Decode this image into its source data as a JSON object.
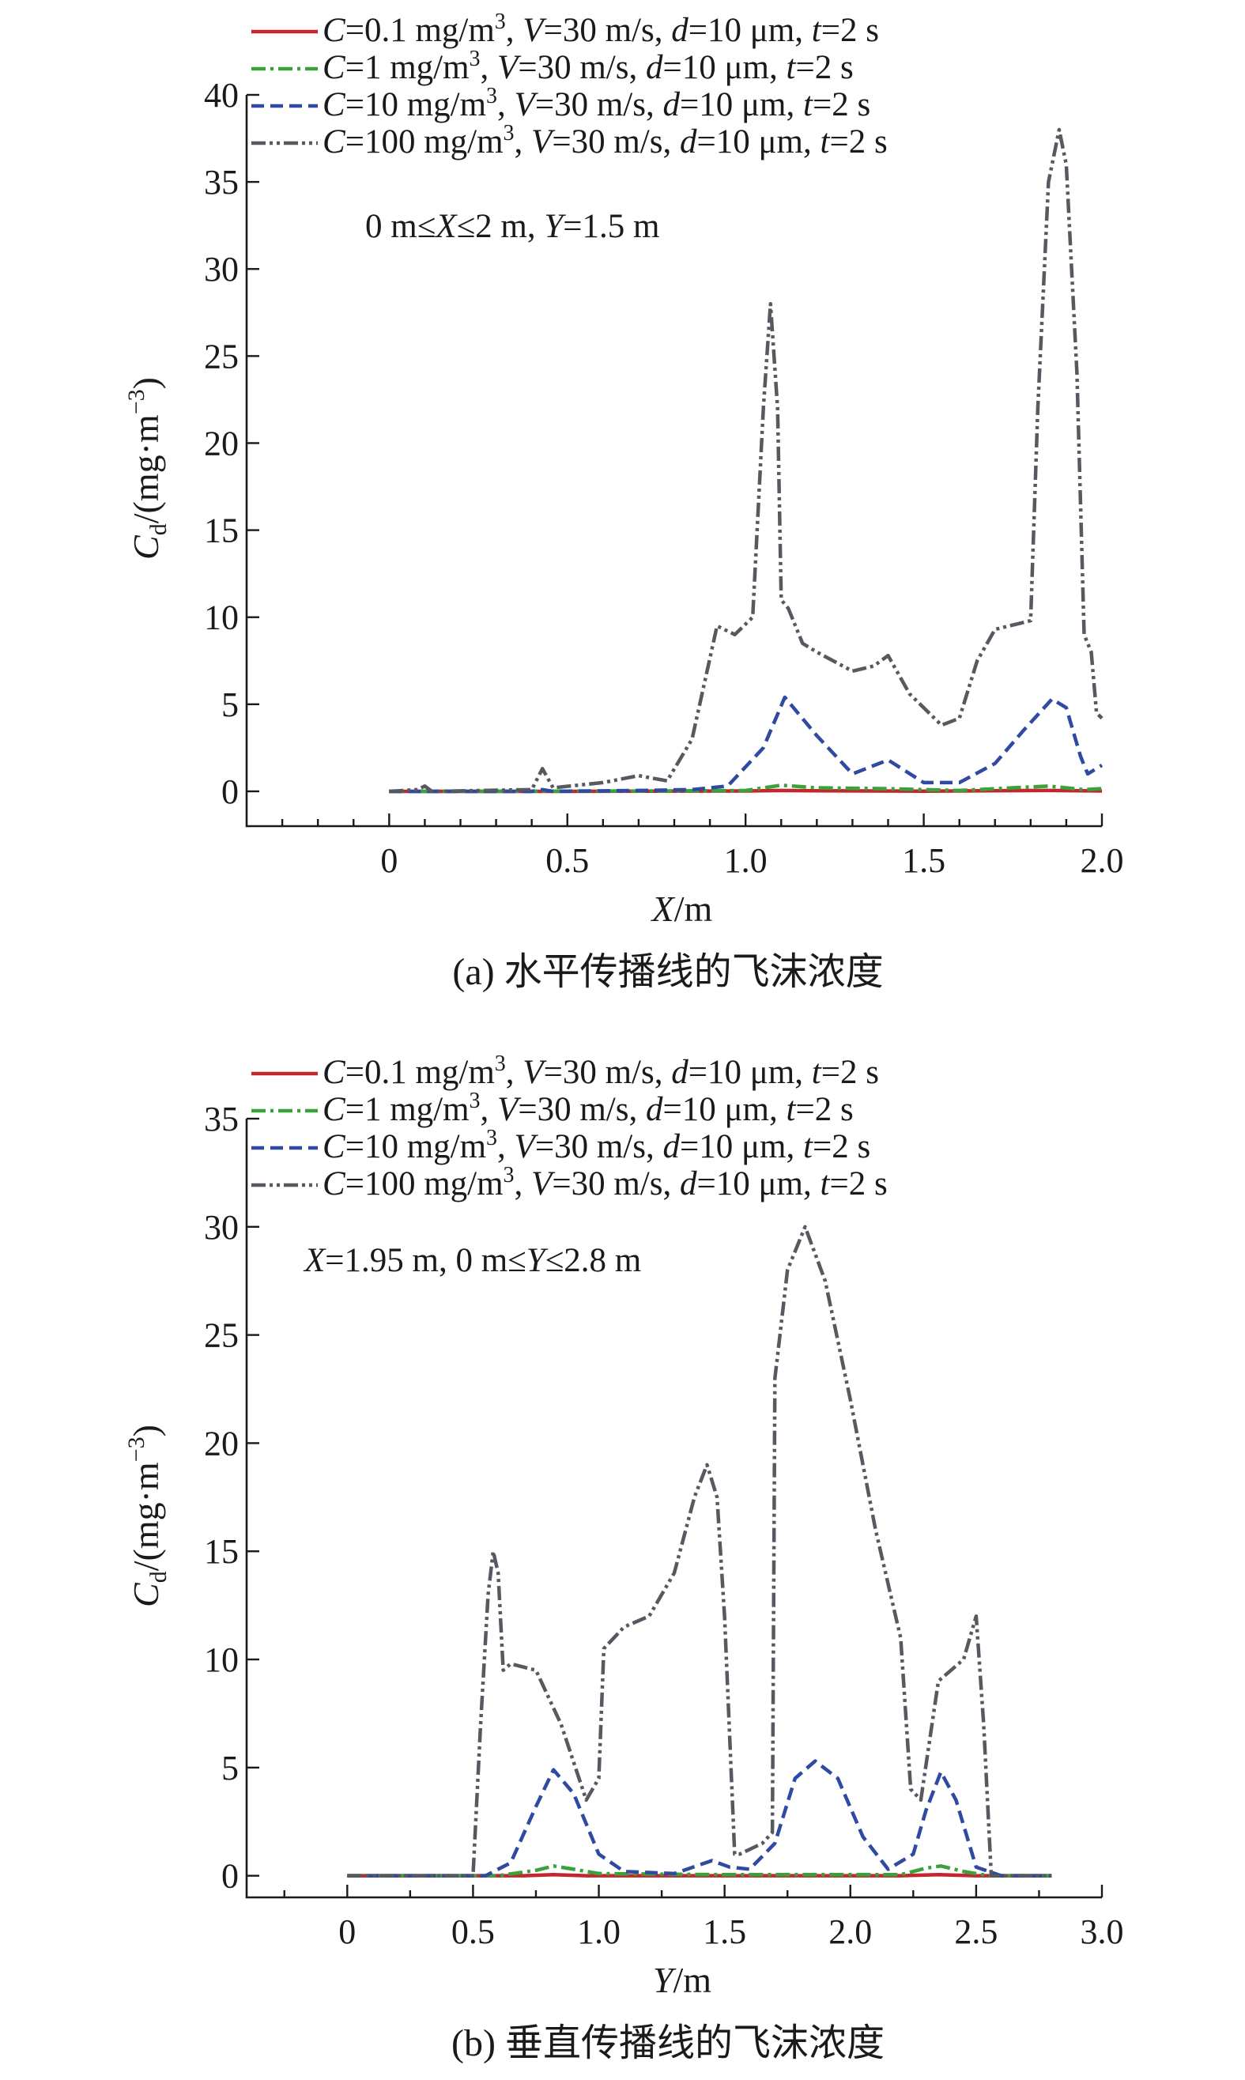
{
  "chart_data": [
    {
      "type": "line",
      "panel": "a",
      "caption": "(a) 水平传播线的飞沫浓度",
      "xlabel": {
        "var": "X",
        "unit": "/m"
      },
      "ylabel": {
        "var": "C",
        "sub": "d",
        "unit": "/(mg·m",
        "exp": "−3",
        "close": ")"
      },
      "xlim": [
        -0.4,
        2.0
      ],
      "ylim": [
        -2,
        40
      ],
      "xticks": [
        "0",
        "0.5",
        "1.0",
        "1.5",
        "2.0"
      ],
      "xtick_values": [
        0,
        0.5,
        1.0,
        1.5,
        2.0
      ],
      "xminor": [
        -0.3,
        -0.2,
        -0.1,
        0.1,
        0.2,
        0.3,
        0.4,
        0.6,
        0.7,
        0.8,
        0.9,
        1.1,
        1.2,
        1.3,
        1.4,
        1.6,
        1.7,
        1.8,
        1.9
      ],
      "yticks": [
        "0",
        "5",
        "10",
        "15",
        "20",
        "25",
        "30",
        "35",
        "40"
      ],
      "ytick_values": [
        0,
        5,
        10,
        15,
        20,
        25,
        30,
        35,
        40
      ],
      "legend": {
        "placement": "top-left",
        "entries": [
          {
            "C": "0.1",
            "unit": " mg/m",
            "exp": "3",
            "rest1": ", ",
            "V": "V",
            "rest2": "=30 m/s, ",
            "d": "d",
            "rest3": "=10 μm, ",
            "t": "t",
            "rest4": "=2 s"
          },
          {
            "C": "1",
            "unit": " mg/m",
            "exp": "3",
            "rest1": ", ",
            "V": "V",
            "rest2": "=30 m/s, ",
            "d": "d",
            "rest3": "=10 μm, ",
            "t": "t",
            "rest4": "=2 s"
          },
          {
            "C": "10",
            "unit": " mg/m",
            "exp": "3",
            "rest1": ", ",
            "V": "V",
            "rest2": "=30 m/s, ",
            "d": "d",
            "rest3": "=10 μm, ",
            "t": "t",
            "rest4": "=2 s"
          },
          {
            "C": "100",
            "unit": " mg/m",
            "exp": "3",
            "rest1": ", ",
            "V": "V",
            "rest2": "=30 m/s, ",
            "d": "d",
            "rest3": "=10 μm, ",
            "t": "t",
            "rest4": "=2 s"
          }
        ],
        "note": {
          "pre": "0 m≤",
          "var1": "X",
          "mid": "≤2 m, ",
          "var2": "Y",
          "post": "=1.5 m"
        }
      },
      "series": [
        {
          "name": "C=0.1 mg/m3, V=30 m/s, d=10 μm, t=2 s",
          "color": "#c0282d",
          "style": "solid",
          "x": [
            0,
            0.5,
            1.0,
            1.1,
            1.2,
            1.5,
            1.85,
            2.0
          ],
          "y": [
            0,
            0,
            0.02,
            0.05,
            0.03,
            0.01,
            0.05,
            0.02
          ]
        },
        {
          "name": "C=1 mg/m3, V=30 m/s, d=10 μm, t=2 s",
          "color": "#3aa23a",
          "style": "dashdot",
          "x": [
            0,
            0.8,
            1.0,
            1.1,
            1.2,
            1.4,
            1.6,
            1.85,
            1.95,
            2.0
          ],
          "y": [
            0,
            0.02,
            0.05,
            0.35,
            0.2,
            0.15,
            0.05,
            0.3,
            0.1,
            0.15
          ]
        },
        {
          "name": "C=10 mg/m3, V=30 m/s, d=10 μm, t=2 s",
          "color": "#2f4aa0",
          "style": "dash",
          "x": [
            0,
            0.4,
            0.43,
            0.46,
            0.7,
            0.85,
            0.95,
            1.05,
            1.11,
            1.2,
            1.3,
            1.4,
            1.5,
            1.6,
            1.7,
            1.78,
            1.86,
            1.9,
            1.94,
            1.96,
            2.0
          ],
          "y": [
            0,
            0,
            0.1,
            0,
            0.05,
            0.1,
            0.3,
            2.5,
            5.4,
            3.2,
            1.0,
            1.8,
            0.5,
            0.5,
            1.6,
            3.5,
            5.3,
            4.8,
            2.0,
            1.0,
            1.5
          ]
        },
        {
          "name": "C=100 mg/m3, V=30 m/s, d=10 μm, t=2 s",
          "color": "#555960",
          "style": "dashdotdot",
          "x": [
            0,
            0.08,
            0.1,
            0.12,
            0.4,
            0.43,
            0.46,
            0.6,
            0.7,
            0.78,
            0.85,
            0.92,
            0.97,
            1.02,
            1.05,
            1.07,
            1.09,
            1.1,
            1.12,
            1.16,
            1.2,
            1.3,
            1.36,
            1.4,
            1.46,
            1.55,
            1.6,
            1.65,
            1.7,
            1.8,
            1.82,
            1.85,
            1.88,
            1.9,
            1.93,
            1.95,
            1.97,
            1.985,
            2.0
          ],
          "y": [
            0,
            0.1,
            0.3,
            0,
            0.1,
            1.3,
            0.2,
            0.5,
            0.9,
            0.6,
            3.0,
            9.5,
            9.0,
            10.0,
            22,
            28,
            22,
            11,
            10.5,
            8.5,
            8.0,
            6.9,
            7.2,
            7.8,
            5.6,
            3.8,
            4.2,
            7.5,
            9.3,
            9.8,
            22,
            35,
            38,
            36,
            24,
            9,
            8,
            4.5,
            4.2
          ]
        }
      ]
    },
    {
      "type": "line",
      "panel": "b",
      "caption": "(b) 垂直传播线的飞沫浓度",
      "xlabel": {
        "var": "Y",
        "unit": "/m"
      },
      "ylabel": {
        "var": "C",
        "sub": "d",
        "unit": "/(mg·m",
        "exp": "−3",
        "close": ")"
      },
      "xlim": [
        -0.4,
        3.0
      ],
      "ylim": [
        -1,
        35
      ],
      "xticks": [
        "0",
        "0.5",
        "1.0",
        "1.5",
        "2.0",
        "2.5",
        "3.0"
      ],
      "xtick_values": [
        0,
        0.5,
        1.0,
        1.5,
        2.0,
        2.5,
        3.0
      ],
      "xminor": [
        -0.25,
        0.25,
        0.75,
        1.25,
        1.75,
        2.25,
        2.75
      ],
      "yticks": [
        "0",
        "5",
        "10",
        "15",
        "20",
        "25",
        "30",
        "35"
      ],
      "ytick_values": [
        0,
        5,
        10,
        15,
        20,
        25,
        30,
        35
      ],
      "legend": {
        "placement": "top-left",
        "entries": [
          {
            "C": "0.1",
            "unit": " mg/m",
            "exp": "3",
            "rest1": ", ",
            "V": "V",
            "rest2": "=30 m/s, ",
            "d": "d",
            "rest3": "=10 μm, ",
            "t": "t",
            "rest4": "=2 s"
          },
          {
            "C": "1",
            "unit": " mg/m",
            "exp": "3",
            "rest1": ", ",
            "V": "V",
            "rest2": "=30 m/s, ",
            "d": "d",
            "rest3": "=10 μm, ",
            "t": "t",
            "rest4": "=2 s"
          },
          {
            "C": "10",
            "unit": " mg/m",
            "exp": "3",
            "rest1": ", ",
            "V": "V",
            "rest2": "=30 m/s, ",
            "d": "d",
            "rest3": "=10 μm, ",
            "t": "t",
            "rest4": "=2 s"
          },
          {
            "C": "100",
            "unit": " mg/m",
            "exp": "3",
            "rest1": ", ",
            "V": "V",
            "rest2": "=30 m/s, ",
            "d": "d",
            "rest3": "=10 μm, ",
            "t": "t",
            "rest4": "=2 s"
          }
        ],
        "note": {
          "pre": "",
          "var1": "X",
          "mid": "=1.95 m, 0 m≤",
          "var2": "Y",
          "post": "≤2.8 m"
        }
      },
      "series": [
        {
          "name": "C=0.1 mg/m3, V=30 m/s, d=10 μm, t=2 s",
          "color": "#c0282d",
          "style": "solid",
          "x": [
            0,
            0.7,
            0.82,
            0.95,
            2.2,
            2.35,
            2.5,
            2.8
          ],
          "y": [
            0,
            0,
            0.05,
            0,
            0,
            0.05,
            0,
            0
          ]
        },
        {
          "name": "C=1 mg/m3, V=30 m/s, d=10 μm, t=2 s",
          "color": "#3aa23a",
          "style": "dashdot",
          "x": [
            0,
            0.6,
            0.75,
            0.82,
            0.9,
            1.0,
            1.5,
            1.8,
            2.2,
            2.3,
            2.36,
            2.45,
            2.55,
            2.8
          ],
          "y": [
            0,
            0,
            0.25,
            0.45,
            0.3,
            0.1,
            0.05,
            0.05,
            0.05,
            0.35,
            0.45,
            0.2,
            0,
            0
          ]
        },
        {
          "name": "C=10 mg/m3, V=30 m/s, d=10 μm, t=2 s",
          "color": "#2f4aa0",
          "style": "dash",
          "x": [
            0,
            0.55,
            0.65,
            0.75,
            0.82,
            0.9,
            1.0,
            1.1,
            1.3,
            1.45,
            1.52,
            1.6,
            1.7,
            1.78,
            1.86,
            1.95,
            2.05,
            2.15,
            2.25,
            2.3,
            2.36,
            2.42,
            2.5,
            2.6,
            2.8
          ],
          "y": [
            0,
            0,
            0.6,
            3.2,
            4.9,
            3.8,
            1.0,
            0.2,
            0.1,
            0.7,
            0.4,
            0.3,
            1.5,
            4.5,
            5.3,
            4.5,
            1.8,
            0.3,
            1.0,
            3.0,
            4.8,
            3.5,
            0.4,
            0,
            0
          ]
        },
        {
          "name": "C=100 mg/m3, V=30 m/s, d=10 μm, t=2 s",
          "color": "#555960",
          "style": "dashdotdot",
          "x": [
            0,
            0.5,
            0.53,
            0.56,
            0.58,
            0.6,
            0.62,
            0.65,
            0.75,
            0.85,
            0.95,
            1.0,
            1.02,
            1.1,
            1.2,
            1.3,
            1.38,
            1.43,
            1.47,
            1.5,
            1.52,
            1.54,
            1.56,
            1.65,
            1.69,
            1.7,
            1.72,
            1.75,
            1.82,
            1.9,
            2.0,
            2.1,
            2.18,
            2.2,
            2.24,
            2.28,
            2.35,
            2.45,
            2.5,
            2.53,
            2.56,
            2.8
          ],
          "y": [
            0,
            0,
            7,
            13,
            15,
            14,
            9.5,
            9.8,
            9.5,
            7,
            3.5,
            4.5,
            10.5,
            11.5,
            12,
            14,
            17.5,
            19,
            17.5,
            12,
            6.5,
            1,
            1,
            1.5,
            2,
            23,
            25,
            28,
            30,
            27.5,
            22,
            16,
            12,
            11,
            4,
            3.5,
            9,
            10,
            12,
            7,
            0,
            0
          ]
        }
      ]
    }
  ]
}
